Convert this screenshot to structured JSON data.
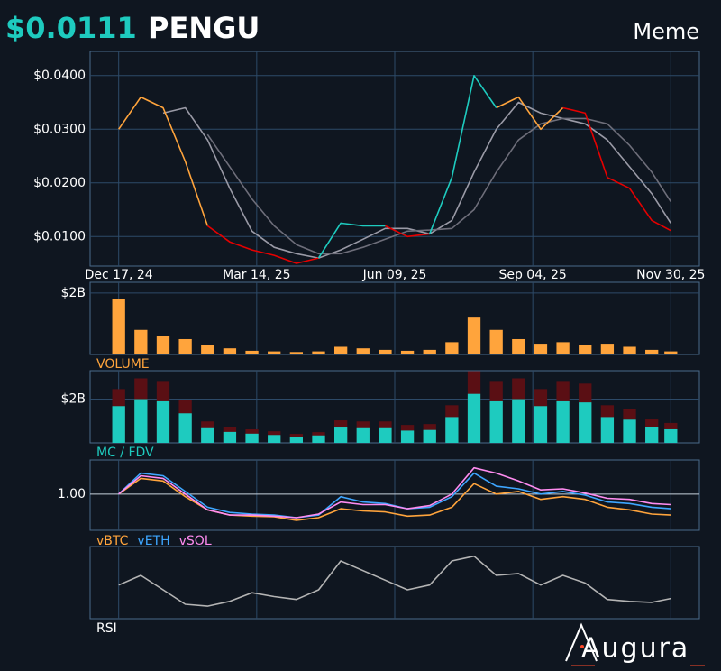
{
  "header": {
    "price": "$0.0111",
    "symbol": "PENGU",
    "category": "Meme"
  },
  "logo": "Augura",
  "chart_data": [
    {
      "type": "line",
      "x": [
        "2024-12-17",
        "2024-12-31",
        "2025-01-14",
        "2025-01-28",
        "2025-02-11",
        "2025-02-25",
        "2025-03-11",
        "2025-03-25",
        "2025-04-08",
        "2025-04-22",
        "2025-05-06",
        "2025-05-20",
        "2025-06-03",
        "2025-06-17",
        "2025-07-01",
        "2025-07-15",
        "2025-07-29",
        "2025-08-12",
        "2025-08-26",
        "2025-09-09",
        "2025-09-23",
        "2025-10-07",
        "2025-10-21",
        "2025-11-04",
        "2025-11-18",
        "2025-11-30"
      ],
      "series": [
        {
          "color": "#9a9aa6",
          "values": [
            null,
            null,
            0.033,
            0.034,
            0.028,
            0.019,
            0.011,
            0.008,
            0.0068,
            0.006,
            0.0075,
            0.0095,
            0.0115,
            0.0115,
            0.0105,
            0.013,
            0.022,
            0.03,
            0.035,
            0.033,
            0.032,
            0.031,
            0.028,
            0.023,
            0.018,
            0.0125
          ]
        },
        {
          "color": "#6e6e7a",
          "values": [
            null,
            null,
            null,
            null,
            0.029,
            0.023,
            0.017,
            0.012,
            0.0085,
            0.0068,
            0.0068,
            0.008,
            0.0095,
            0.011,
            0.0112,
            0.0115,
            0.015,
            0.022,
            0.028,
            0.031,
            0.032,
            0.032,
            0.031,
            0.027,
            0.022,
            0.0165
          ]
        },
        {
          "color": "#ffa43c",
          "values": [
            0.03,
            0.036,
            0.034,
            0.024,
            0.012,
            null,
            null,
            null,
            null,
            null,
            null,
            null,
            null,
            null,
            null,
            null,
            null,
            0.034,
            0.036,
            0.03,
            0.034,
            null,
            null,
            null,
            null,
            null
          ]
        },
        {
          "color": "#e60000",
          "values": [
            null,
            null,
            null,
            null,
            0.012,
            0.009,
            0.0075,
            0.0065,
            0.005,
            0.006,
            null,
            null,
            0.012,
            0.01,
            0.0105,
            null,
            null,
            null,
            null,
            null,
            0.034,
            0.033,
            0.021,
            0.019,
            0.013,
            0.0111
          ]
        },
        {
          "color": "#1ecbbf",
          "values": [
            null,
            null,
            null,
            null,
            null,
            null,
            null,
            null,
            null,
            0.006,
            0.0125,
            0.012,
            0.012,
            null,
            0.0105,
            0.021,
            0.04,
            0.034,
            null,
            null,
            null,
            null,
            null,
            null,
            null,
            null
          ]
        }
      ],
      "xlim": [
        "2024-11-29",
        "2025-12-18"
      ],
      "xticks": [
        {
          "value": "2024-12-17",
          "label": "Dec 17, 24"
        },
        {
          "value": "2025-03-14",
          "label": "Mar 14, 25"
        },
        {
          "value": "2025-06-09",
          "label": "Jun 09, 25"
        },
        {
          "value": "2025-09-04",
          "label": "Sep 04, 25"
        },
        {
          "value": "2025-11-30",
          "label": "Nov 30, 25"
        }
      ],
      "ylim": [
        0.0045,
        0.0445
      ],
      "yticks": [
        {
          "value": 0.01,
          "label": "$0.0100"
        },
        {
          "value": 0.02,
          "label": "$0.0200"
        },
        {
          "value": 0.03,
          "label": "$0.0300"
        },
        {
          "value": 0.04,
          "label": "$0.0400"
        }
      ],
      "grid": true
    },
    {
      "type": "bar",
      "label": "VOLUME",
      "label_color": "#ffa43c",
      "x": [
        "2024-12-17",
        "2024-12-31",
        "2025-01-14",
        "2025-01-28",
        "2025-02-11",
        "2025-02-25",
        "2025-03-11",
        "2025-03-25",
        "2025-04-08",
        "2025-04-22",
        "2025-05-06",
        "2025-05-20",
        "2025-06-03",
        "2025-06-17",
        "2025-07-01",
        "2025-07-15",
        "2025-07-29",
        "2025-08-12",
        "2025-08-26",
        "2025-09-09",
        "2025-09-23",
        "2025-10-07",
        "2025-10-21",
        "2025-11-04",
        "2025-11-18",
        "2025-11-30"
      ],
      "series": [
        {
          "color": "#ffa43c",
          "values": [
            1800000000.0,
            800000000.0,
            600000000.0,
            500000000.0,
            300000000.0,
            200000000.0,
            120000000.0,
            100000000.0,
            80000000.0,
            100000000.0,
            250000000.0,
            200000000.0,
            150000000.0,
            120000000.0,
            150000000.0,
            400000000.0,
            1200000000.0,
            800000000.0,
            500000000.0,
            350000000.0,
            400000000.0,
            300000000.0,
            350000000.0,
            250000000.0,
            150000000.0,
            100000000.0
          ]
        }
      ],
      "xlim": [
        "2024-11-29",
        "2025-12-18"
      ],
      "ylim": [
        0,
        2350000000.0
      ],
      "yticks": [
        {
          "value": 2000000000.0,
          "label": "$2B"
        }
      ],
      "grid": true
    },
    {
      "type": "bar",
      "label": "MC / FDV",
      "label_color": "#1ecbbf",
      "x": [
        "2024-12-17",
        "2024-12-31",
        "2025-01-14",
        "2025-01-28",
        "2025-02-11",
        "2025-02-25",
        "2025-03-11",
        "2025-03-25",
        "2025-04-08",
        "2025-04-22",
        "2025-05-06",
        "2025-05-20",
        "2025-06-03",
        "2025-06-17",
        "2025-07-01",
        "2025-07-15",
        "2025-07-29",
        "2025-08-12",
        "2025-08-26",
        "2025-09-09",
        "2025-09-23",
        "2025-10-07",
        "2025-10-21",
        "2025-11-04",
        "2025-11-18",
        "2025-11-30"
      ],
      "series": [
        {
          "color": "#5a0f14",
          "values": [
            2460000000.0,
            2950000000.0,
            2790000000.0,
            1970000000.0,
            980000000.0,
            740000000.0,
            620000000.0,
            530000000.0,
            410000000.0,
            490000000.0,
            1030000000.0,
            980000000.0,
            980000000.0,
            820000000.0,
            860000000.0,
            1720000000.0,
            3280000000.0,
            2790000000.0,
            2950000000.0,
            2460000000.0,
            2790000000.0,
            2710000000.0,
            1720000000.0,
            1560000000.0,
            1070000000.0,
            910000000.0
          ]
        },
        {
          "color": "#1ecbbf",
          "values": [
            1680000000.0,
            2000000000.0,
            1900000000.0,
            1350000000.0,
            670000000.0,
            500000000.0,
            420000000.0,
            360000000.0,
            280000000.0,
            340000000.0,
            700000000.0,
            670000000.0,
            670000000.0,
            560000000.0,
            590000000.0,
            1180000000.0,
            2240000000.0,
            1900000000.0,
            2000000000.0,
            1680000000.0,
            1900000000.0,
            1850000000.0,
            1180000000.0,
            1060000000.0,
            730000000.0,
            620000000.0
          ]
        }
      ],
      "xlim": [
        "2024-11-29",
        "2025-12-18"
      ],
      "ylim": [
        0,
        3300000000.0
      ],
      "yticks": [
        {
          "value": 2000000000.0,
          "label": "$2B"
        }
      ],
      "grid": true
    },
    {
      "type": "line",
      "x": [
        "2024-12-17",
        "2024-12-31",
        "2025-01-14",
        "2025-01-28",
        "2025-02-11",
        "2025-02-25",
        "2025-03-11",
        "2025-03-25",
        "2025-04-08",
        "2025-04-22",
        "2025-05-06",
        "2025-05-20",
        "2025-06-03",
        "2025-06-17",
        "2025-07-01",
        "2025-07-15",
        "2025-07-29",
        "2025-08-12",
        "2025-08-26",
        "2025-09-09",
        "2025-09-23",
        "2025-10-07",
        "2025-10-21",
        "2025-11-04",
        "2025-11-18",
        "2025-11-30"
      ],
      "series": [
        {
          "name": "vBTC",
          "color": "#ffa43c",
          "values": [
            1.0,
            1.3,
            1.25,
            0.95,
            0.7,
            0.6,
            0.58,
            0.57,
            0.5,
            0.55,
            0.72,
            0.68,
            0.66,
            0.58,
            0.6,
            0.75,
            1.2,
            1.0,
            1.05,
            0.9,
            0.95,
            0.9,
            0.75,
            0.7,
            0.62,
            0.6
          ]
        },
        {
          "name": "vETH",
          "color": "#3ea6ff",
          "values": [
            1.0,
            1.4,
            1.35,
            1.05,
            0.75,
            0.65,
            0.62,
            0.6,
            0.55,
            0.6,
            0.95,
            0.85,
            0.82,
            0.72,
            0.75,
            0.95,
            1.4,
            1.15,
            1.1,
            1.0,
            1.05,
            0.98,
            0.85,
            0.82,
            0.75,
            0.72
          ]
        },
        {
          "name": "vSOL",
          "color": "#ff8cf0",
          "values": [
            1.0,
            1.35,
            1.3,
            1.0,
            0.7,
            0.6,
            0.6,
            0.58,
            0.55,
            0.62,
            0.85,
            0.8,
            0.8,
            0.72,
            0.78,
            1.0,
            1.5,
            1.4,
            1.25,
            1.08,
            1.1,
            1.02,
            0.92,
            0.9,
            0.82,
            0.8
          ]
        }
      ],
      "xlim": [
        "2024-11-29",
        "2025-12-18"
      ],
      "ylim": [
        0.31,
        1.65
      ],
      "yticks": [
        {
          "value": 1,
          "label": "1.00"
        }
      ],
      "grid": true
    },
    {
      "type": "line",
      "label": "RSI",
      "label_color": "#ffffff",
      "x": [
        "2024-12-17",
        "2024-12-31",
        "2025-01-14",
        "2025-01-28",
        "2025-02-11",
        "2025-02-25",
        "2025-03-11",
        "2025-03-25",
        "2025-04-08",
        "2025-04-22",
        "2025-05-06",
        "2025-05-20",
        "2025-06-03",
        "2025-06-17",
        "2025-07-01",
        "2025-07-15",
        "2025-07-29",
        "2025-08-12",
        "2025-08-26",
        "2025-09-09",
        "2025-09-23",
        "2025-10-07",
        "2025-10-21",
        "2025-11-04",
        "2025-11-18",
        "2025-11-30"
      ],
      "series": [
        {
          "color": "#b4b4b4",
          "values": [
            50,
            60,
            45,
            30,
            28,
            33,
            42,
            38,
            35,
            45,
            75,
            65,
            55,
            45,
            50,
            75,
            80,
            60,
            62,
            50,
            60,
            52,
            35,
            33,
            32,
            36
          ]
        }
      ],
      "xlim": [
        "2024-11-29",
        "2025-12-18"
      ],
      "ylim": [
        15,
        90
      ],
      "yticks": [],
      "grid": true
    }
  ]
}
